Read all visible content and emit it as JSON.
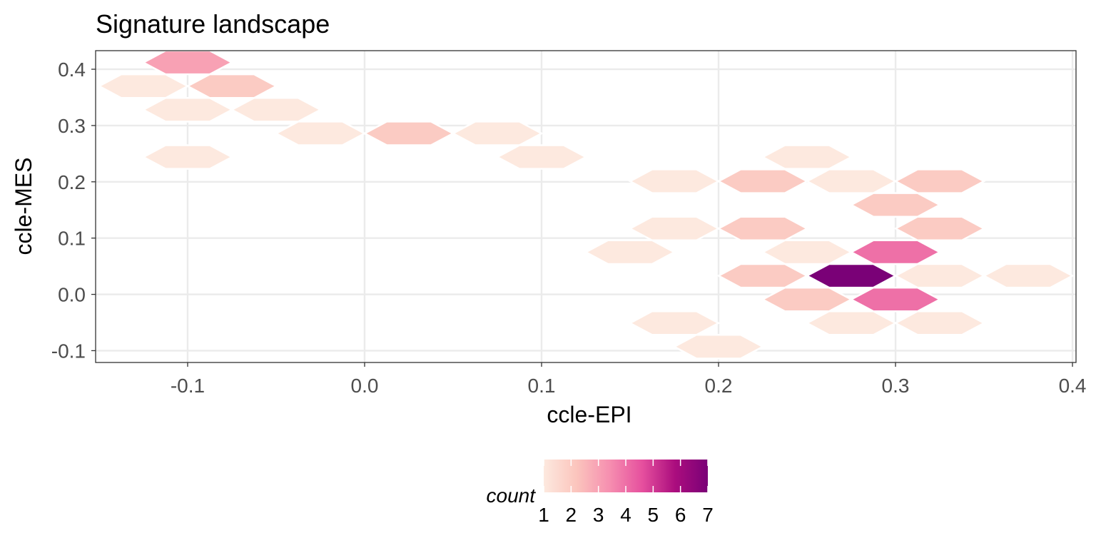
{
  "chart_data": {
    "type": "heatmap",
    "subtype": "hexbin",
    "title": "Signature landscape",
    "xlabel": "ccle-EPI",
    "ylabel": "ccle-MES",
    "xlim": [
      -0.152,
      0.402
    ],
    "ylim": [
      -0.121,
      0.433
    ],
    "x_ticks": [
      -0.1,
      0.0,
      0.1,
      0.2,
      0.3,
      0.4
    ],
    "x_tick_labels": [
      "-0.1",
      "0.0",
      "0.1",
      "0.2",
      "0.3",
      "0.4"
    ],
    "y_ticks": [
      -0.1,
      0.0,
      0.1,
      0.2,
      0.3,
      0.4
    ],
    "y_tick_labels": [
      "-0.1",
      "0.0",
      "0.1",
      "0.2",
      "0.3",
      "0.4"
    ],
    "grid": true,
    "legend": {
      "title": "count",
      "position": "bottom",
      "range": [
        1,
        7
      ],
      "tick_labels": [
        "1",
        "2",
        "3",
        "4",
        "5",
        "6",
        "7"
      ],
      "colors": [
        "#fde9df",
        "#fbc5bd",
        "#f68fb0",
        "#e6509e",
        "#ab0d7e",
        "#7a0177"
      ]
    },
    "bins": [
      {
        "x": -0.1,
        "y": 0.412,
        "count": 3
      },
      {
        "x": -0.125,
        "y": 0.37,
        "count": 1
      },
      {
        "x": -0.075,
        "y": 0.37,
        "count": 2
      },
      {
        "x": -0.1,
        "y": 0.328,
        "count": 1
      },
      {
        "x": -0.05,
        "y": 0.328,
        "count": 1
      },
      {
        "x": -0.025,
        "y": 0.286,
        "count": 1
      },
      {
        "x": 0.025,
        "y": 0.286,
        "count": 2
      },
      {
        "x": 0.075,
        "y": 0.286,
        "count": 1
      },
      {
        "x": -0.1,
        "y": 0.244,
        "count": 1
      },
      {
        "x": 0.1,
        "y": 0.244,
        "count": 1
      },
      {
        "x": 0.25,
        "y": 0.244,
        "count": 1
      },
      {
        "x": 0.175,
        "y": 0.201,
        "count": 1
      },
      {
        "x": 0.225,
        "y": 0.201,
        "count": 2
      },
      {
        "x": 0.275,
        "y": 0.201,
        "count": 1
      },
      {
        "x": 0.325,
        "y": 0.201,
        "count": 2
      },
      {
        "x": 0.3,
        "y": 0.159,
        "count": 2
      },
      {
        "x": 0.175,
        "y": 0.117,
        "count": 1
      },
      {
        "x": 0.225,
        "y": 0.117,
        "count": 2
      },
      {
        "x": 0.325,
        "y": 0.117,
        "count": 2
      },
      {
        "x": 0.15,
        "y": 0.075,
        "count": 1
      },
      {
        "x": 0.25,
        "y": 0.075,
        "count": 1
      },
      {
        "x": 0.3,
        "y": 0.075,
        "count": 4
      },
      {
        "x": 0.225,
        "y": 0.033,
        "count": 2
      },
      {
        "x": 0.275,
        "y": 0.033,
        "count": 7
      },
      {
        "x": 0.325,
        "y": 0.033,
        "count": 1
      },
      {
        "x": 0.375,
        "y": 0.033,
        "count": 1
      },
      {
        "x": 0.25,
        "y": -0.009,
        "count": 2
      },
      {
        "x": 0.3,
        "y": -0.009,
        "count": 4
      },
      {
        "x": 0.175,
        "y": -0.051,
        "count": 1
      },
      {
        "x": 0.275,
        "y": -0.051,
        "count": 1
      },
      {
        "x": 0.325,
        "y": -0.051,
        "count": 1
      },
      {
        "x": 0.2,
        "y": -0.093,
        "count": 1
      }
    ]
  }
}
